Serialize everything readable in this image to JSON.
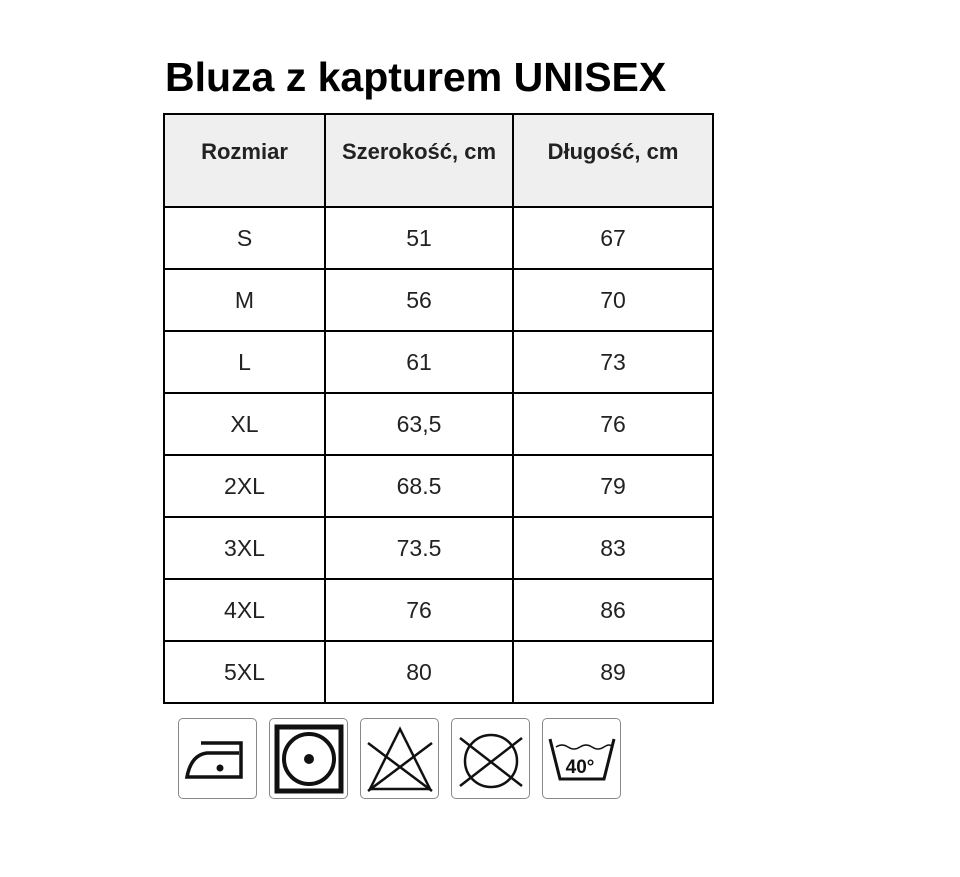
{
  "title": "Bluza z kapturem UNISEX",
  "table": {
    "headers": [
      "Rozmiar",
      "Szerokość, cm",
      "Długość, cm"
    ],
    "rows": [
      [
        "S",
        "51",
        "67"
      ],
      [
        "M",
        "56",
        "70"
      ],
      [
        "L",
        "61",
        "73"
      ],
      [
        "XL",
        "63,5",
        "76"
      ],
      [
        "2XL",
        "68.5",
        "79"
      ],
      [
        "3XL",
        "73.5",
        "83"
      ],
      [
        "4XL",
        "76",
        "86"
      ],
      [
        "5XL",
        "80",
        "89"
      ]
    ]
  },
  "care_icons": [
    "iron-low-icon",
    "tumble-dry-icon",
    "no-bleach-icon",
    "no-dry-clean-icon",
    "wash-40-icon"
  ],
  "wash_temp": "40°"
}
